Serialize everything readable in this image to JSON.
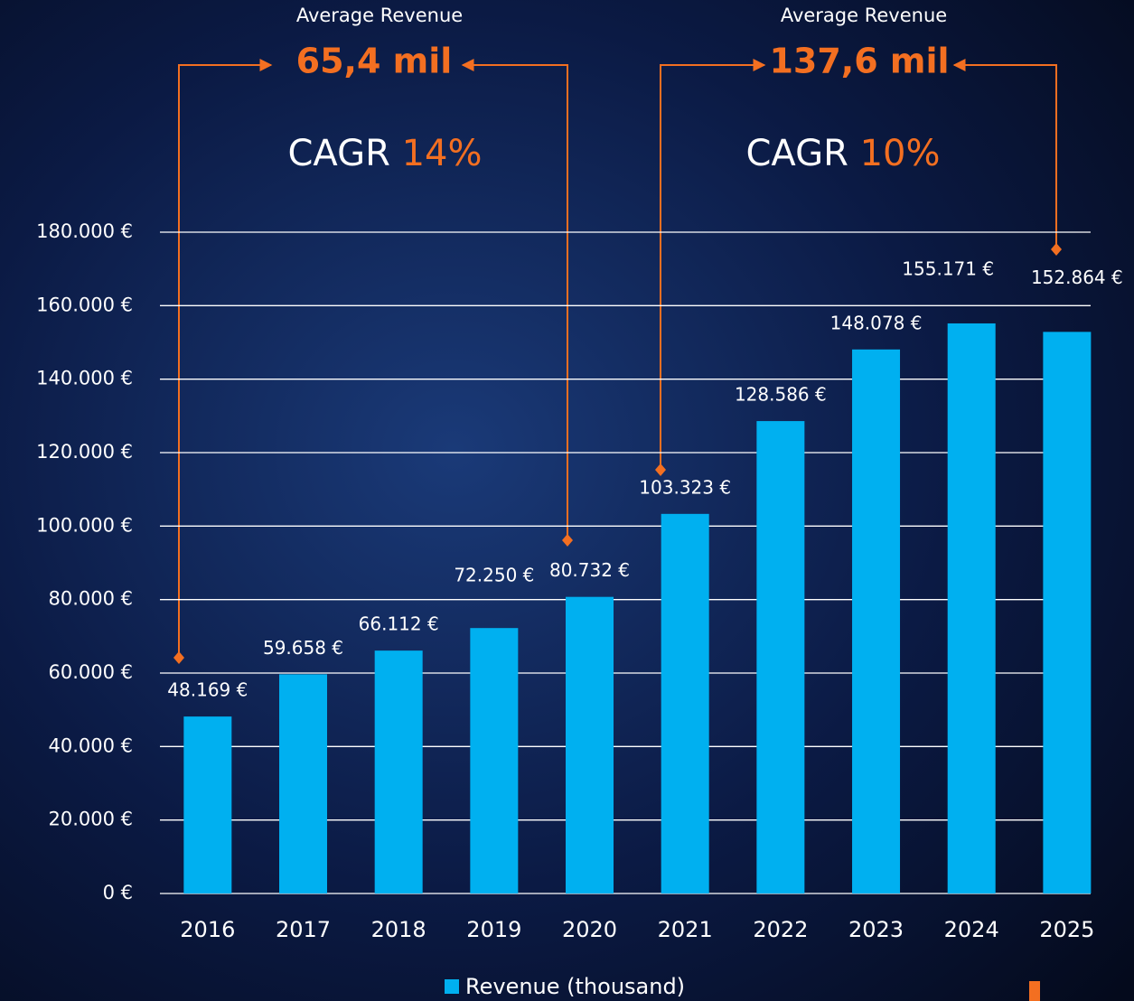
{
  "chart_data": {
    "type": "bar",
    "categories": [
      "2016",
      "2017",
      "2018",
      "2019",
      "2020",
      "2021",
      "2022",
      "2023",
      "2024",
      "2025"
    ],
    "series": [
      {
        "name": "Revenue (thousand)",
        "color": "#00b0f0",
        "values": [
          48169,
          59658,
          66112,
          72250,
          80732,
          103323,
          128586,
          148078,
          155171,
          152864
        ],
        "value_labels": [
          "48.169 €",
          "59.658 €",
          "66.112 €",
          "72.250 €",
          "80.732 €",
          "103.323 €",
          "128.586 €",
          "148.078 €",
          "155.171 €",
          "152.864 €"
        ]
      }
    ],
    "ylim": [
      0,
      180000
    ],
    "yticks": [
      {
        "value": 0,
        "label": "0 €"
      },
      {
        "value": 20000,
        "label": "20.000 €"
      },
      {
        "value": 40000,
        "label": "40.000 €"
      },
      {
        "value": 60000,
        "label": "60.000 €"
      },
      {
        "value": 80000,
        "label": "80.000 €"
      },
      {
        "value": 100000,
        "label": "100.000 €"
      },
      {
        "value": 120000,
        "label": "120.000 €"
      },
      {
        "value": 140000,
        "label": "140.000 €"
      },
      {
        "value": 160000,
        "label": "160.000 €"
      },
      {
        "value": 180000,
        "label": "180.000 €"
      }
    ],
    "grid": true,
    "legend": "bottom",
    "annotations": [
      {
        "label": "Average Revenue",
        "value": "65,4 mil",
        "cagr_label": "CAGR",
        "cagr": "14%"
      },
      {
        "label": "Average Revenue",
        "value": "137,6 mil",
        "cagr_label": "CAGR",
        "cagr": "10%"
      }
    ]
  }
}
